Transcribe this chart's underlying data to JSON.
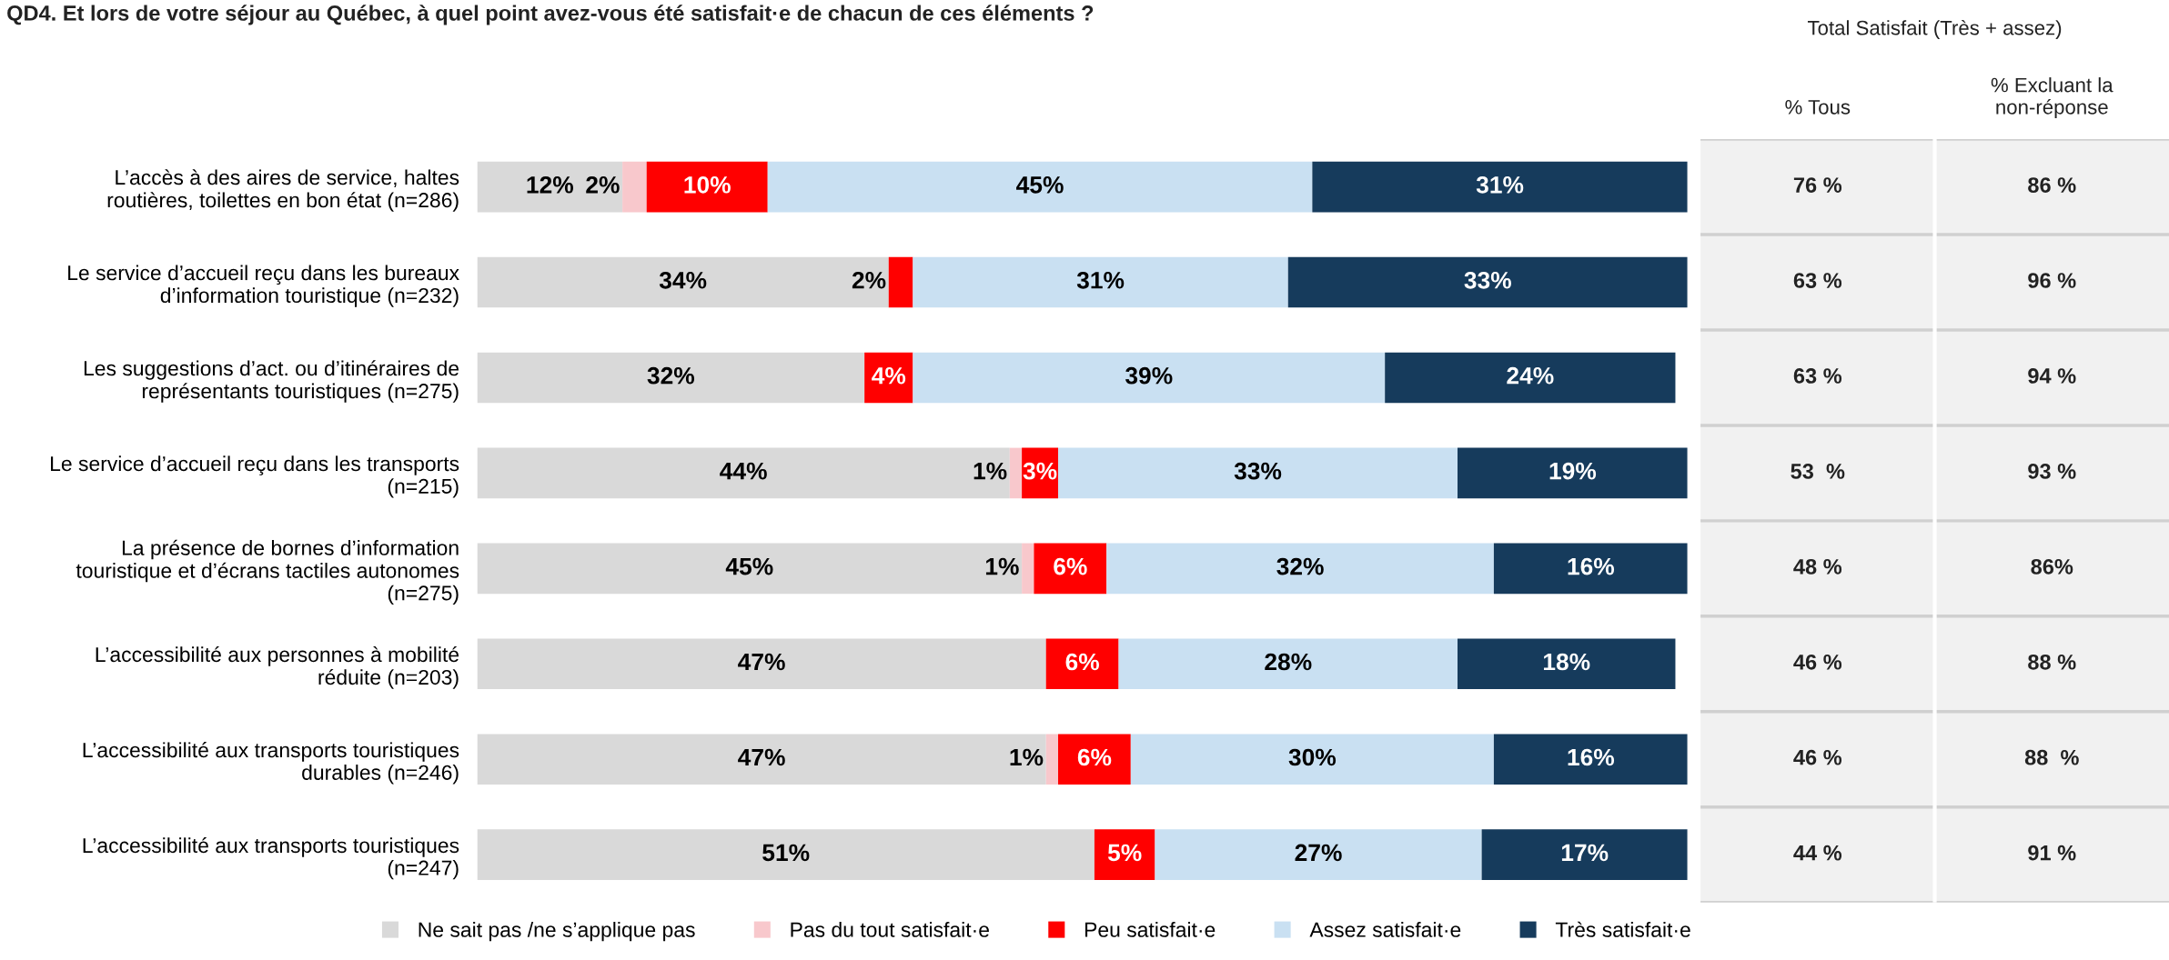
{
  "chart_data": [
    {
      "type": "bar",
      "orientation": "horizontal",
      "stacked": true,
      "title": "QD4. Et lors de votre séjour au Québec, à quel point avez-vous été satisfait·e de chacun de ces éléments ?",
      "categories": [
        "L’accès à des aires de service, haltes\nroutières, toilettes en bon état (n=286)",
        "Le service d’accueil reçu dans les bureaux\nd’information touristique (n=232)",
        "Les suggestions d’act. ou d’itinéraires de\nreprésentants touristiques (n=275)",
        "Le service d’accueil reçu dans les transports\n(n=215)",
        "La présence de bornes d’information\ntouristique et d’écrans tactiles autonomes\n(n=275)",
        "L’accessibilité aux personnes à mobilité\nréduite (n=203)",
        "L’accessibilité aux transports touristiques\ndurables (n=246)",
        "L’accessibilité aux transports touristiques\n(n=247)"
      ],
      "series": [
        {
          "name": "Ne sait pas /ne s’applique pas",
          "color": "#d9d9d9",
          "values": [
            12,
            34,
            32,
            44,
            45,
            47,
            47,
            51
          ],
          "value_labels": [
            "12%",
            "34%",
            "32%",
            "44%",
            "45%",
            "47%",
            "47%",
            "51%"
          ]
        },
        {
          "name": "Pas du tout satisfait·e",
          "color": "#f8c8cc",
          "values": [
            2,
            null,
            null,
            1,
            1,
            null,
            1,
            null
          ],
          "value_labels": [
            "2%",
            null,
            null,
            "1%",
            "1%",
            null,
            "1%",
            null
          ]
        },
        {
          "name": "Peu satisfait·e",
          "color": "#ff0000",
          "values": [
            10,
            2,
            4,
            3,
            6,
            6,
            6,
            5
          ],
          "value_labels": [
            "10%",
            "2%",
            "4%",
            "3%",
            "6%",
            "6%",
            "6%",
            "5%"
          ]
        },
        {
          "name": "Assez satisfait·e",
          "color": "#c9e0f2",
          "values": [
            45,
            31,
            39,
            33,
            32,
            28,
            30,
            27
          ],
          "value_labels": [
            "45%",
            "31%",
            "39%",
            "33%",
            "32%",
            "28%",
            "30%",
            "27%"
          ]
        },
        {
          "name": "Très satisfait·e",
          "color": "#163b5c",
          "values": [
            31,
            33,
            24,
            19,
            16,
            18,
            16,
            17
          ],
          "value_labels": [
            "31%",
            "33%",
            "24%",
            "19%",
            "16%",
            "18%",
            "16%",
            "17%"
          ]
        }
      ],
      "legend": "bottom"
    },
    {
      "type": "other",
      "title": "Total Satisfait (Très + assez)",
      "categories": [
        "% Tous",
        "% Excluant la\nnon-réponse"
      ],
      "cell_labels": [
        [
          "76 %",
          "86 %"
        ],
        [
          "63 %",
          "96 %"
        ],
        [
          "63 %",
          "94 %"
        ],
        [
          "53  %",
          "93 %"
        ],
        [
          "48 %",
          "86%"
        ],
        [
          "46 %",
          "88 %"
        ],
        [
          "46 %",
          "88  %"
        ],
        [
          "44 %",
          "91 %"
        ]
      ]
    }
  ]
}
